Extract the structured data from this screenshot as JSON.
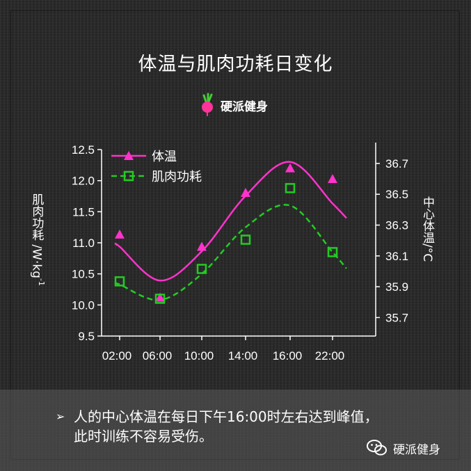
{
  "title": "体温与肌肉功耗日变化",
  "logo": {
    "brand": "硬派健身",
    "icon": "radish-icon"
  },
  "note": {
    "bullet": "➢",
    "line1": "人的中心体温在每日下午16:00时左右达到峰值，",
    "line2": "此时训练不容易受伤。"
  },
  "watermark": {
    "text": "硬派健身",
    "icon": "wechat-icon"
  },
  "colors": {
    "temp": "#ff33cc",
    "power": "#22cc22",
    "axis": "#ffffff",
    "background": "#2b2b2b"
  },
  "chart_data": {
    "type": "scatter",
    "x_ticks": [
      "02:00",
      "06:00",
      "10:00",
      "14:00",
      "16:00",
      "22:00"
    ],
    "left_axis": {
      "label": "肌肉功耗 /W·kg",
      "label_superscript": "-1",
      "ticks": [
        "9.5",
        "10.0",
        "10.5",
        "11.0",
        "11.5",
        "12.0",
        "12.5"
      ],
      "range": [
        9.5,
        12.5
      ]
    },
    "right_axis": {
      "label": "中心体温/°C",
      "ticks": [
        "35.7",
        "35.9",
        "36.1",
        "36.3",
        "36.5",
        "36.7"
      ],
      "range": [
        35.58,
        36.79
      ]
    },
    "legend": {
      "placement": "top-left"
    },
    "series": [
      {
        "name": "体温",
        "axis": "right",
        "marker": "triangle",
        "line": "solid",
        "points": [
          {
            "x": "02:00",
            "y": 36.24
          },
          {
            "x": "06:00",
            "y": 35.83
          },
          {
            "x": "10:00",
            "y": 36.16
          },
          {
            "x": "14:00",
            "y": 36.51
          },
          {
            "x": "16:00",
            "y": 36.67
          },
          {
            "x": "22:00",
            "y": 36.6
          }
        ],
        "curve": [
          {
            "x": "02:00",
            "y": 36.16
          },
          {
            "x": "06:00",
            "y": 35.94
          },
          {
            "x": "10:00",
            "y": 36.13
          },
          {
            "x": "14:00",
            "y": 36.49
          },
          {
            "x": "16:00",
            "y": 36.71
          },
          {
            "x": "22:00",
            "y": 36.44
          }
        ]
      },
      {
        "name": "肌肉功耗",
        "axis": "left",
        "marker": "square",
        "line": "dashed",
        "points": [
          {
            "x": "02:00",
            "y": 10.38
          },
          {
            "x": "06:00",
            "y": 10.1
          },
          {
            "x": "10:00",
            "y": 10.58
          },
          {
            "x": "14:00",
            "y": 11.05
          },
          {
            "x": "16:00",
            "y": 11.88
          },
          {
            "x": "22:00",
            "y": 10.85
          }
        ],
        "curve": [
          {
            "x": "02:00",
            "y": 10.33
          },
          {
            "x": "06:00",
            "y": 10.08
          },
          {
            "x": "10:00",
            "y": 10.5
          },
          {
            "x": "14:00",
            "y": 11.25
          },
          {
            "x": "16:00",
            "y": 11.6
          },
          {
            "x": "22:00",
            "y": 10.85
          }
        ]
      }
    ]
  }
}
